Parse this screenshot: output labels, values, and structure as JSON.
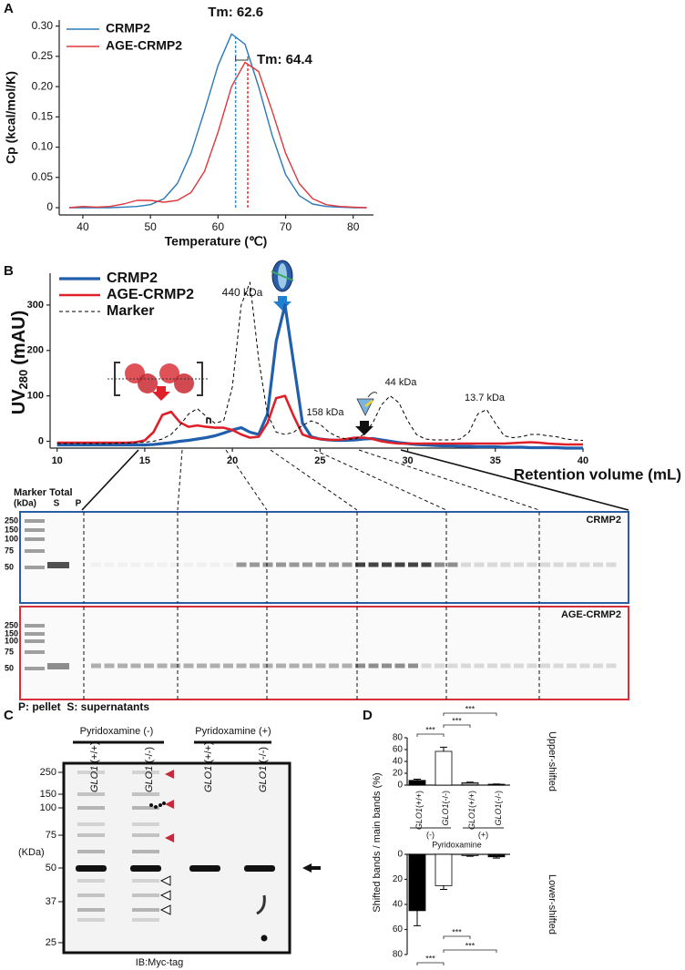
{
  "figure": {
    "panels": [
      "A",
      "B",
      "C",
      "D"
    ]
  },
  "chart_data": [
    {
      "type": "line",
      "xlabel": "Temperature (℃)",
      "ylabel": "Cp (kcal/mol/K)",
      "x": [
        38,
        40,
        42,
        44,
        46,
        48,
        50,
        52,
        54,
        56,
        58,
        60,
        62,
        64,
        66,
        68,
        70,
        72,
        74,
        76,
        78,
        80,
        82
      ],
      "series": [
        {
          "name": "CRMP2",
          "color": "#2a78b8",
          "values": [
            0,
            0,
            0,
            0,
            0.001,
            0.002,
            0.005,
            0.015,
            0.04,
            0.09,
            0.16,
            0.235,
            0.287,
            0.27,
            0.2,
            0.12,
            0.055,
            0.02,
            0.006,
            0.002,
            0.001,
            0,
            0
          ]
        },
        {
          "name": "AGE-CRMP2",
          "color": "#e0373c",
          "values": [
            0,
            0.002,
            0.001,
            0.002,
            0.006,
            0.012,
            0.012,
            0.009,
            0.012,
            0.025,
            0.06,
            0.125,
            0.2,
            0.24,
            0.225,
            0.16,
            0.09,
            0.04,
            0.015,
            0.005,
            0.002,
            0.001,
            0
          ]
        }
      ],
      "xlim": [
        36.5,
        83
      ],
      "ylim": [
        -0.012,
        0.31
      ],
      "xticks": [
        40,
        50,
        60,
        70,
        80
      ],
      "yticks": [
        0,
        0.05,
        {
          "value": 0.1,
          "label": "0.10"
        },
        0.15,
        {
          "value": 0.2,
          "label": "0.20"
        },
        0.25,
        {
          "value": 0.3,
          "label": "0.30"
        }
      ],
      "legend": "upper left",
      "annotations": [
        {
          "text": "Tm: 62.6",
          "x": 62.6,
          "color": "#2f8fd0"
        },
        {
          "text": "Tm: 64.4",
          "x": 64.4,
          "color": "#e0373c"
        }
      ]
    },
    {
      "type": "line",
      "xlabel": "Retention volume (mL)",
      "ylabel": [
        "UV",
        "280",
        "(mAU)"
      ],
      "x": [
        10,
        10.5,
        11,
        11.5,
        12,
        12.5,
        13,
        13.5,
        14,
        14.5,
        15,
        15.5,
        16,
        16.5,
        17,
        17.5,
        18,
        18.5,
        19,
        19.5,
        20,
        20.5,
        21,
        21.5,
        22,
        22.5,
        23,
        23.5,
        24,
        24.5,
        25,
        25.5,
        26,
        26.5,
        27,
        27.5,
        28,
        28.5,
        29,
        29.5,
        30,
        30.5,
        31,
        31.5,
        32,
        32.5,
        33,
        33.5,
        34,
        34.5,
        35,
        35.5,
        36,
        36.5,
        37,
        37.5,
        38,
        38.5,
        39,
        39.5,
        40
      ],
      "series": [
        {
          "name": "CRMP2",
          "color": "#1f5fae",
          "style": "solid",
          "values": [
            -8,
            -8,
            -8,
            -8,
            -8,
            -8,
            -8,
            -8,
            -8,
            -8,
            -8,
            -7,
            -5,
            -3,
            0,
            2,
            5,
            8,
            12,
            18,
            25,
            30,
            20,
            15,
            60,
            220,
            300,
            170,
            40,
            10,
            5,
            3,
            2,
            2,
            3,
            5,
            6,
            3,
            0,
            -3,
            -5,
            -7,
            -8,
            -9,
            -10,
            -10,
            -11,
            -11,
            -12,
            -12,
            -12,
            -13,
            -13,
            -13,
            -14,
            -14,
            -14,
            -14,
            -15,
            -15,
            -15
          ]
        },
        {
          "name": "AGE-CRMP2",
          "color": "#e02028",
          "style": "solid",
          "values": [
            -3,
            -3,
            -3,
            -3,
            -3,
            -3,
            -3,
            -3,
            -3,
            -2,
            2,
            20,
            58,
            65,
            42,
            32,
            35,
            32,
            30,
            30,
            25,
            15,
            8,
            10,
            40,
            95,
            100,
            55,
            15,
            8,
            5,
            3,
            3,
            5,
            8,
            8,
            5,
            0,
            -3,
            -5,
            -5,
            -5,
            -5,
            -5,
            -5,
            -5,
            -5,
            -5,
            -5,
            -5,
            -5,
            -5,
            -4,
            -3,
            -2,
            -3,
            -5,
            -6,
            -7,
            -7,
            -7
          ]
        },
        {
          "name": "Marker",
          "color": "#000000",
          "style": "dashed",
          "values": [
            -5,
            -5,
            -5,
            -5,
            -5,
            -5,
            -5,
            -4,
            -4,
            -3,
            -2,
            0,
            5,
            15,
            35,
            60,
            72,
            55,
            40,
            45,
            120,
            300,
            350,
            180,
            60,
            20,
            15,
            20,
            35,
            45,
            38,
            20,
            10,
            5,
            5,
            15,
            40,
            80,
            100,
            85,
            45,
            15,
            5,
            3,
            3,
            3,
            5,
            20,
            60,
            70,
            40,
            12,
            8,
            10,
            15,
            15,
            12,
            10,
            5,
            3,
            2
          ]
        }
      ],
      "xlim": [
        9.6,
        40
      ],
      "ylim": [
        -15,
        370
      ],
      "xticks": [
        10,
        15,
        20,
        25,
        30,
        35,
        40
      ],
      "yticks": [
        0,
        100,
        200,
        300
      ],
      "legend": "upper left",
      "annotations": [
        "440 kDa",
        "158 kDa",
        "44 kDa",
        "13.7 kDa",
        "n"
      ]
    },
    {
      "type": "bar",
      "ylabel": "Shifted bands / main bands (%)",
      "side_label": "Upper-shifted",
      "gene": "GLO1",
      "categories": [
        "(+/+)",
        "(-/-)",
        "(+/+)",
        "(-/-)"
      ],
      "groups": [
        "(-)",
        "(+)"
      ],
      "group_title": "Pyridoxamine",
      "values": [
        8,
        57,
        4,
        1.5
      ],
      "errors": [
        2,
        7,
        1,
        0.5
      ],
      "colors": [
        "#000000",
        "#ffffff",
        "#9a9a9a",
        "#111111"
      ],
      "ylim": [
        0,
        80
      ],
      "yticks": [
        0,
        20,
        40,
        60,
        80
      ],
      "significance": [
        "***",
        "***",
        "***"
      ]
    },
    {
      "type": "bar",
      "side_label": "Lower-shifted",
      "invert_y": true,
      "values": [
        45,
        25,
        1,
        2
      ],
      "errors": [
        12,
        3,
        0.5,
        1
      ],
      "colors": [
        "#000000",
        "#ffffff",
        "#9a9a9a",
        "#111111"
      ],
      "ylim": [
        0,
        80
      ],
      "yticks": [
        0,
        20,
        40,
        60,
        80
      ],
      "significance": [
        "***",
        "***",
        "***"
      ]
    }
  ],
  "gel": {
    "header": "Marker Total",
    "unit": "(kDa)",
    "lanes": [
      "S",
      "P"
    ],
    "ladder": [
      250,
      150,
      100,
      75,
      50
    ],
    "gels": [
      {
        "label": "CRMP2",
        "color": "#2a5ca8"
      },
      {
        "label": "AGE-CRMP2",
        "color": "#d6303c"
      }
    ],
    "footnote": "P: pellet  S: supernatants"
  },
  "blot": {
    "treatments": [
      "Pyridoxamine (-)",
      "Pyridoxamine (+)"
    ],
    "gene": "GLO1",
    "genotypes": [
      "(+/+)",
      "(-/-)",
      "(+/+)",
      "(-/-)"
    ],
    "mw": [
      250,
      150,
      100,
      75,
      50,
      37,
      25
    ],
    "mw_unit": "(KDa)",
    "antibody": "IB:Myc-tag"
  }
}
